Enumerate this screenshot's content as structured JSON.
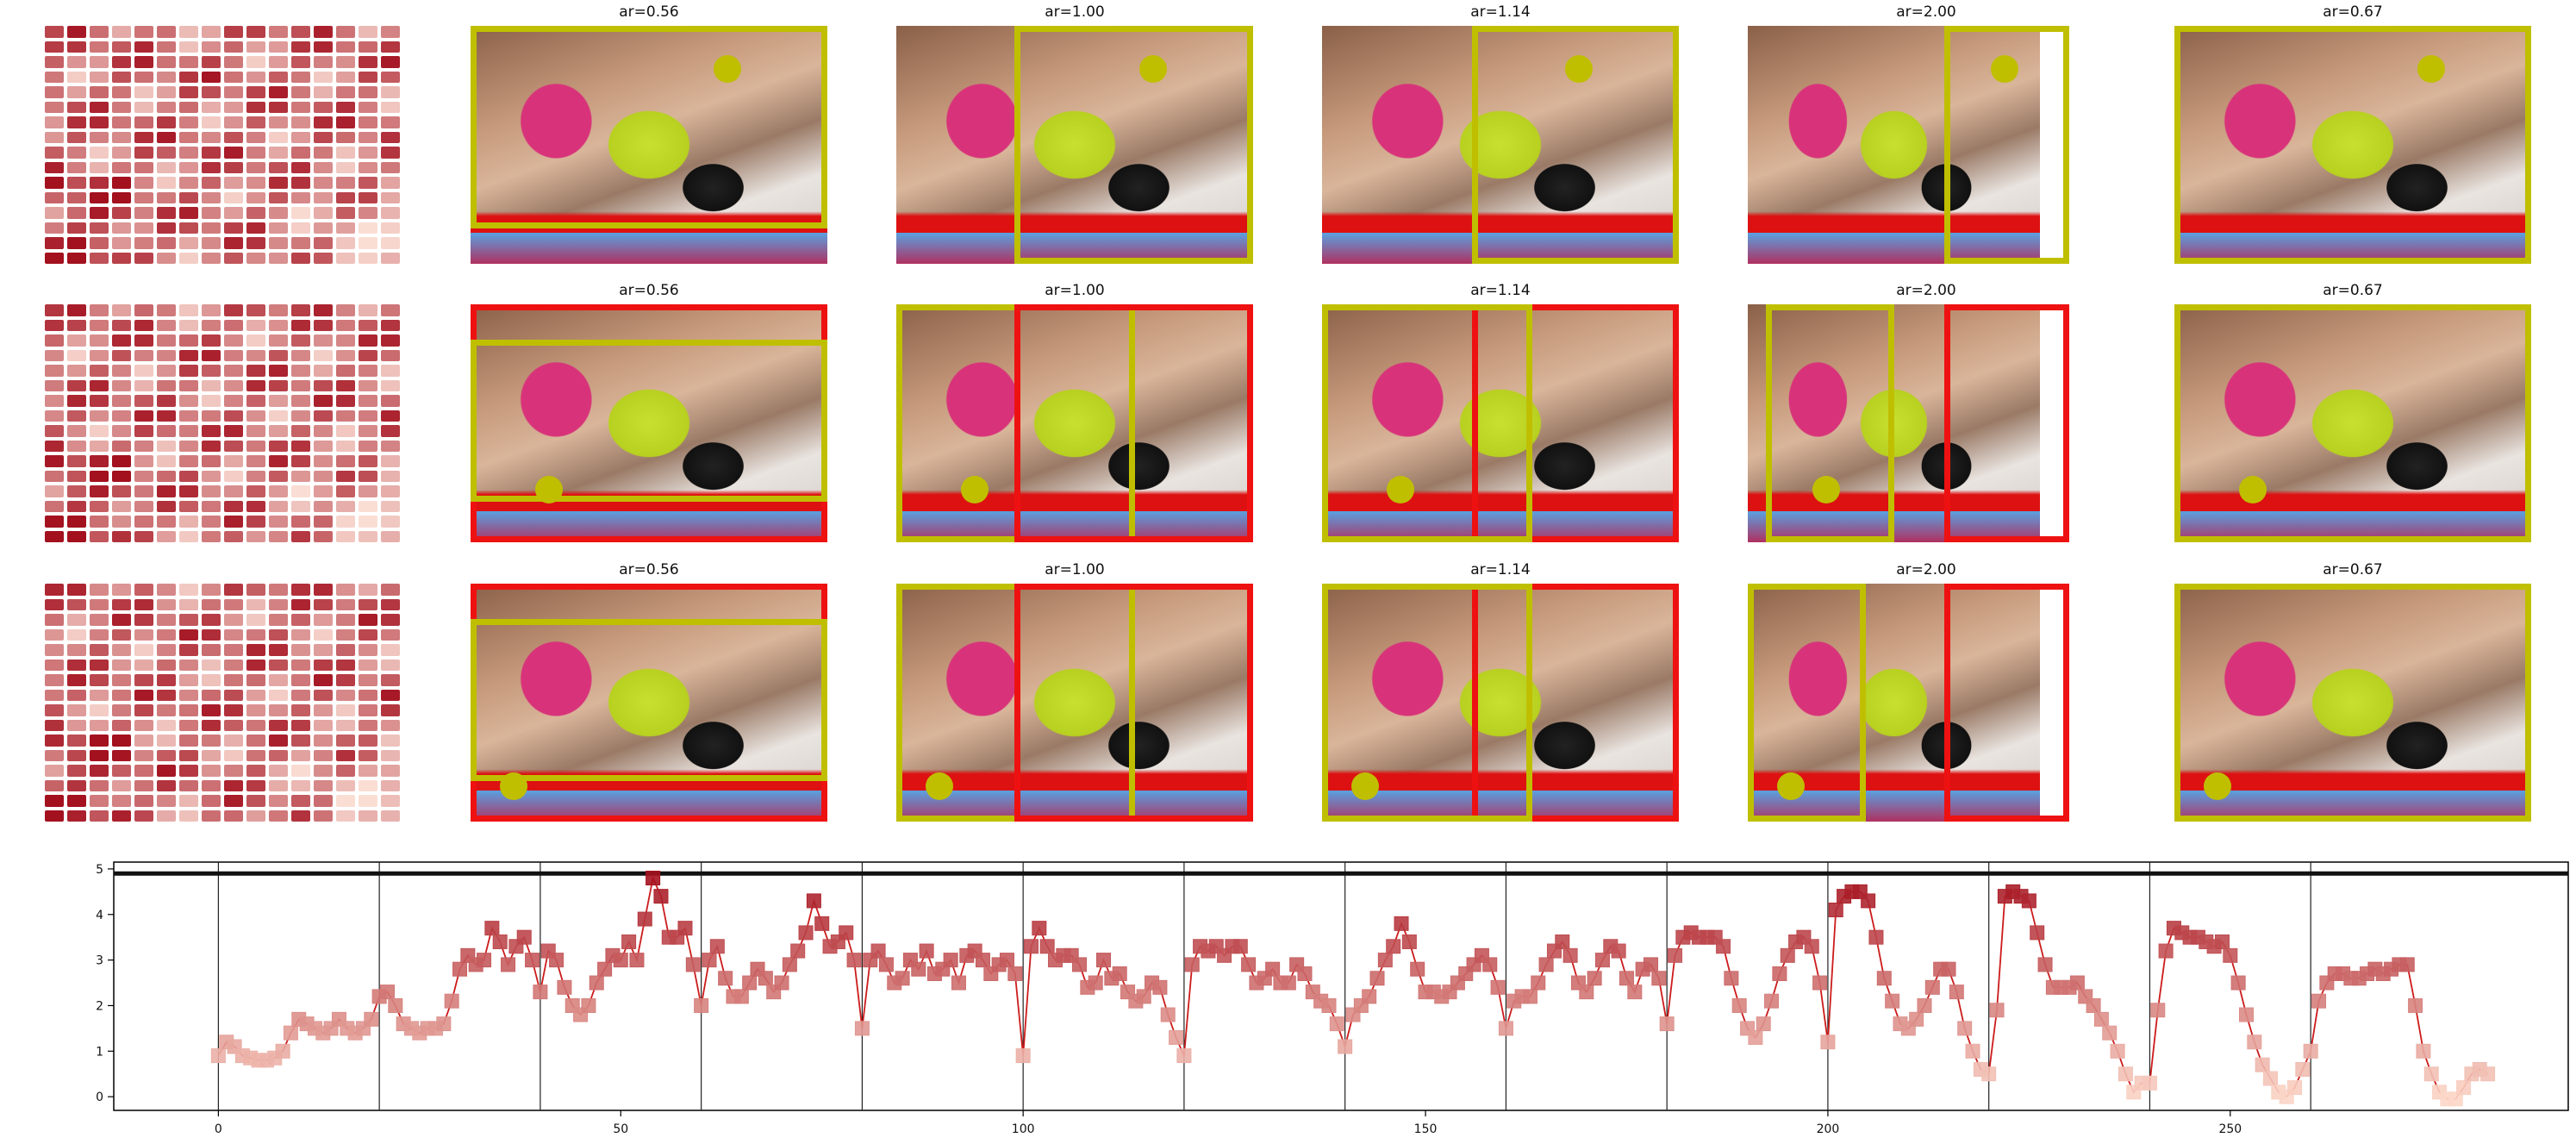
{
  "colors": {
    "proposal_box": "#bfbf00",
    "gt_box": "#ee1111",
    "dot": "#bfbf00",
    "line": "#cc1b1b",
    "heat_low": "#fde4da",
    "heat_high": "#a3101e"
  },
  "grid": {
    "rows": [
      {
        "row": 1,
        "titles": [
          "ar=0.56",
          "ar=1.00",
          "ar=1.14",
          "ar=2.00",
          "ar=0.67"
        ]
      },
      {
        "row": 2,
        "titles": [
          "ar=0.56",
          "ar=1.00",
          "ar=1.14",
          "ar=2.00",
          "ar=0.67"
        ]
      },
      {
        "row": 3,
        "titles": [
          "ar=0.56",
          "ar=1.00",
          "ar=1.14",
          "ar=2.00",
          "ar=0.67"
        ]
      }
    ],
    "heatmap_pattern": "16x16 attention grid with bright (high) lower-left/center and pale lower-right corner"
  },
  "chart_data": {
    "type": "line",
    "title": "",
    "xlabel": "",
    "ylabel": "",
    "xlim": [
      -13,
      292
    ],
    "ylim": [
      -0.3,
      5.15
    ],
    "xticks": [
      0,
      50,
      100,
      150,
      200,
      250
    ],
    "yticks": [
      0,
      1,
      2,
      3,
      4,
      5
    ],
    "segment_boundaries": [
      0,
      20,
      40,
      60,
      80,
      100,
      120,
      140,
      160,
      180,
      200,
      220,
      240,
      260
    ],
    "hline": 4.9,
    "marker": "square",
    "x_start": 0,
    "values": [
      0.9,
      1.2,
      1.1,
      0.9,
      0.85,
      0.8,
      0.8,
      0.85,
      1.0,
      1.4,
      1.7,
      1.6,
      1.5,
      1.4,
      1.5,
      1.7,
      1.5,
      1.4,
      1.5,
      1.7,
      2.2,
      2.3,
      2.0,
      1.6,
      1.5,
      1.4,
      1.5,
      1.5,
      1.6,
      2.1,
      2.8,
      3.1,
      2.9,
      3.0,
      3.7,
      3.4,
      2.9,
      3.3,
      3.5,
      3.0,
      2.3,
      3.2,
      3.0,
      2.4,
      2.0,
      1.8,
      2.0,
      2.5,
      2.8,
      3.1,
      3.0,
      3.4,
      3.0,
      3.9,
      4.8,
      4.4,
      3.5,
      3.5,
      3.7,
      2.9,
      2.0,
      3.0,
      3.3,
      2.6,
      2.2,
      2.2,
      2.5,
      2.8,
      2.6,
      2.3,
      2.5,
      2.9,
      3.2,
      3.6,
      4.3,
      3.8,
      3.3,
      3.4,
      3.6,
      3.0,
      1.5,
      3.0,
      3.2,
      2.9,
      2.5,
      2.6,
      3.0,
      2.8,
      3.2,
      2.7,
      2.8,
      3.0,
      2.5,
      3.1,
      3.2,
      3.0,
      2.7,
      2.9,
      3.0,
      2.7,
      0.9,
      3.3,
      3.7,
      3.3,
      3.0,
      3.1,
      3.1,
      2.9,
      2.4,
      2.5,
      3.0,
      2.6,
      2.7,
      2.3,
      2.1,
      2.2,
      2.5,
      2.4,
      1.8,
      1.3,
      0.9,
      2.9,
      3.3,
      3.2,
      3.3,
      3.1,
      3.3,
      3.3,
      2.9,
      2.5,
      2.6,
      2.8,
      2.5,
      2.5,
      2.9,
      2.7,
      2.3,
      2.1,
      2.0,
      1.6,
      1.1,
      1.8,
      2.0,
      2.2,
      2.6,
      3.0,
      3.3,
      3.8,
      3.4,
      2.8,
      2.3,
      2.3,
      2.2,
      2.3,
      2.5,
      2.7,
      2.9,
      3.1,
      2.9,
      2.4,
      1.5,
      2.1,
      2.2,
      2.2,
      2.5,
      2.9,
      3.2,
      3.4,
      3.1,
      2.5,
      2.3,
      2.6,
      3.0,
      3.3,
      3.2,
      2.6,
      2.3,
      2.8,
      2.9,
      2.6,
      1.6,
      3.1,
      3.5,
      3.6,
      3.5,
      3.5,
      3.5,
      3.3,
      2.6,
      2.0,
      1.5,
      1.3,
      1.6,
      2.1,
      2.7,
      3.1,
      3.4,
      3.5,
      3.3,
      2.5,
      1.2,
      4.1,
      4.4,
      4.5,
      4.5,
      4.3,
      3.5,
      2.6,
      2.1,
      1.6,
      1.5,
      1.7,
      2.0,
      2.4,
      2.8,
      2.8,
      2.3,
      1.5,
      1.0,
      0.6,
      0.5,
      1.9,
      4.4,
      4.5,
      4.4,
      4.3,
      3.6,
      2.9,
      2.4,
      2.4,
      2.4,
      2.5,
      2.2,
      2.0,
      1.7,
      1.4,
      1.0,
      0.5,
      0.1,
      0.3,
      0.3,
      1.9,
      3.2,
      3.7,
      3.6,
      3.5,
      3.5,
      3.4,
      3.3,
      3.4,
      3.1,
      2.5,
      1.8,
      1.2,
      0.7,
      0.4,
      0.1,
      0.0,
      0.2,
      0.6,
      1.0,
      2.1,
      2.5,
      2.7,
      2.7,
      2.6,
      2.6,
      2.7,
      2.8,
      2.7,
      2.8,
      2.9,
      2.9,
      2.0,
      1.0,
      0.5,
      0.1,
      -0.05,
      -0.05,
      0.2,
      0.5,
      0.6,
      0.5
    ]
  }
}
